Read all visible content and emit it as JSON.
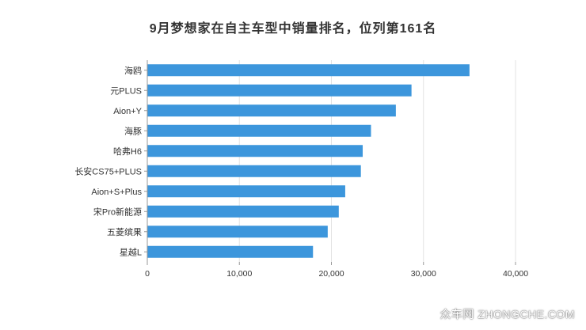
{
  "chart_data": {
    "type": "bar",
    "orientation": "horizontal",
    "title": "9月梦想家在自主车型中销量排名，位列第161名",
    "categories": [
      "海鸥",
      "元PLUS",
      "Aion+Y",
      "海豚",
      "哈弗H6",
      "长安CS75+PLUS",
      "Aion+S+Plus",
      "宋Pro新能源",
      "五菱缤果",
      "星越L"
    ],
    "values": [
      35000,
      28700,
      27000,
      24300,
      23400,
      23200,
      21500,
      20800,
      19600,
      18000
    ],
    "xlim": [
      0,
      40000
    ],
    "xticks": [
      0,
      10000,
      20000,
      30000,
      40000
    ],
    "xtick_labels": [
      "0",
      "10,000",
      "20,000",
      "30,000",
      "40,000"
    ],
    "grid": "vertical",
    "bar_color": "#3c96dc",
    "legend": "none"
  },
  "watermark": "众车网 ZHONGCHE.COM"
}
